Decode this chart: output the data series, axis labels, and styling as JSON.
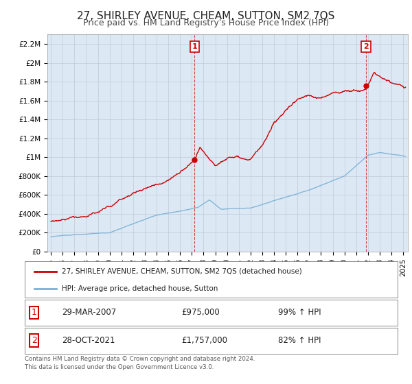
{
  "title": "27, SHIRLEY AVENUE, CHEAM, SUTTON, SM2 7QS",
  "subtitle": "Price paid vs. HM Land Registry's House Price Index (HPI)",
  "ylim": [
    0,
    2300000
  ],
  "xlim_start": 1994.7,
  "xlim_end": 2025.4,
  "yticks": [
    0,
    200000,
    400000,
    600000,
    800000,
    1000000,
    1200000,
    1400000,
    1600000,
    1800000,
    2000000,
    2200000
  ],
  "ytick_labels": [
    "£0",
    "£200K",
    "£400K",
    "£600K",
    "£800K",
    "£1M",
    "£1.2M",
    "£1.4M",
    "£1.6M",
    "£1.8M",
    "£2M",
    "£2.2M"
  ],
  "xtick_years": [
    1995,
    1996,
    1997,
    1998,
    1999,
    2000,
    2001,
    2002,
    2003,
    2004,
    2005,
    2006,
    2007,
    2008,
    2009,
    2010,
    2011,
    2012,
    2013,
    2014,
    2015,
    2016,
    2017,
    2018,
    2019,
    2020,
    2021,
    2022,
    2023,
    2024,
    2025
  ],
  "sale1_x": 2007.24,
  "sale1_y": 975000,
  "sale1_label": "1",
  "sale1_date": "29-MAR-2007",
  "sale1_price": "£975,000",
  "sale1_hpi": "99% ↑ HPI",
  "sale2_x": 2021.83,
  "sale2_y": 1757000,
  "sale2_label": "2",
  "sale2_date": "28-OCT-2021",
  "sale2_price": "£1,757,000",
  "sale2_hpi": "82% ↑ HPI",
  "red_color": "#cc0000",
  "blue_color": "#7ab0d4",
  "plot_bg_color": "#dce9f5",
  "legend1_text": "27, SHIRLEY AVENUE, CHEAM, SUTTON, SM2 7QS (detached house)",
  "legend2_text": "HPI: Average price, detached house, Sutton",
  "footer1": "Contains HM Land Registry data © Crown copyright and database right 2024.",
  "footer2": "This data is licensed under the Open Government Licence v3.0.",
  "bg_color": "#ffffff",
  "grid_color": "#c0c8d8",
  "title_fontsize": 11,
  "subtitle_fontsize": 9,
  "tick_fontsize": 7.5
}
